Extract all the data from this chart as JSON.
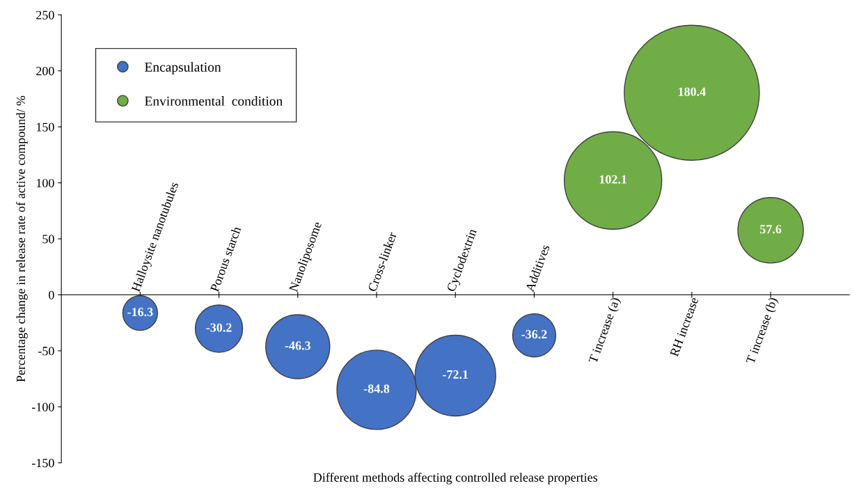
{
  "chart_data": {
    "type": "bubble",
    "xlabel": "Different methods affecting controlled release properties",
    "ylabel": "Percentage change in release rate of active compound/ %",
    "categories": [
      "Halloysite nanotubules",
      "Porous starch",
      "Nanoliposome",
      "Cross-linker",
      "Cyclodextrin",
      "Additives",
      "T increase (a)",
      "RH increase",
      "T increase (b)"
    ],
    "series": [
      {
        "name": "Encapsulation",
        "color": "#4472c4",
        "values": [
          -16.3,
          -30.2,
          -46.3,
          -84.8,
          -72.1,
          -36.2,
          null,
          null,
          null
        ],
        "sizes": [
          0.066,
          0.123,
          0.225,
          0.345,
          0.357,
          0.102,
          null,
          null,
          null
        ]
      },
      {
        "name": "Environmental  condition",
        "color": "#70ad47",
        "values": [
          null,
          null,
          null,
          null,
          null,
          null,
          102.1,
          180.4,
          57.6
        ],
        "sizes": [
          null,
          null,
          null,
          null,
          null,
          null,
          0.521,
          1,
          0.235
        ]
      }
    ],
    "ylim": [
      -150,
      250
    ],
    "yticks": [
      -150,
      -100,
      -50,
      0,
      50,
      100,
      150,
      200,
      250
    ],
    "data_labels": true,
    "legend": "top left",
    "grid": false
  }
}
